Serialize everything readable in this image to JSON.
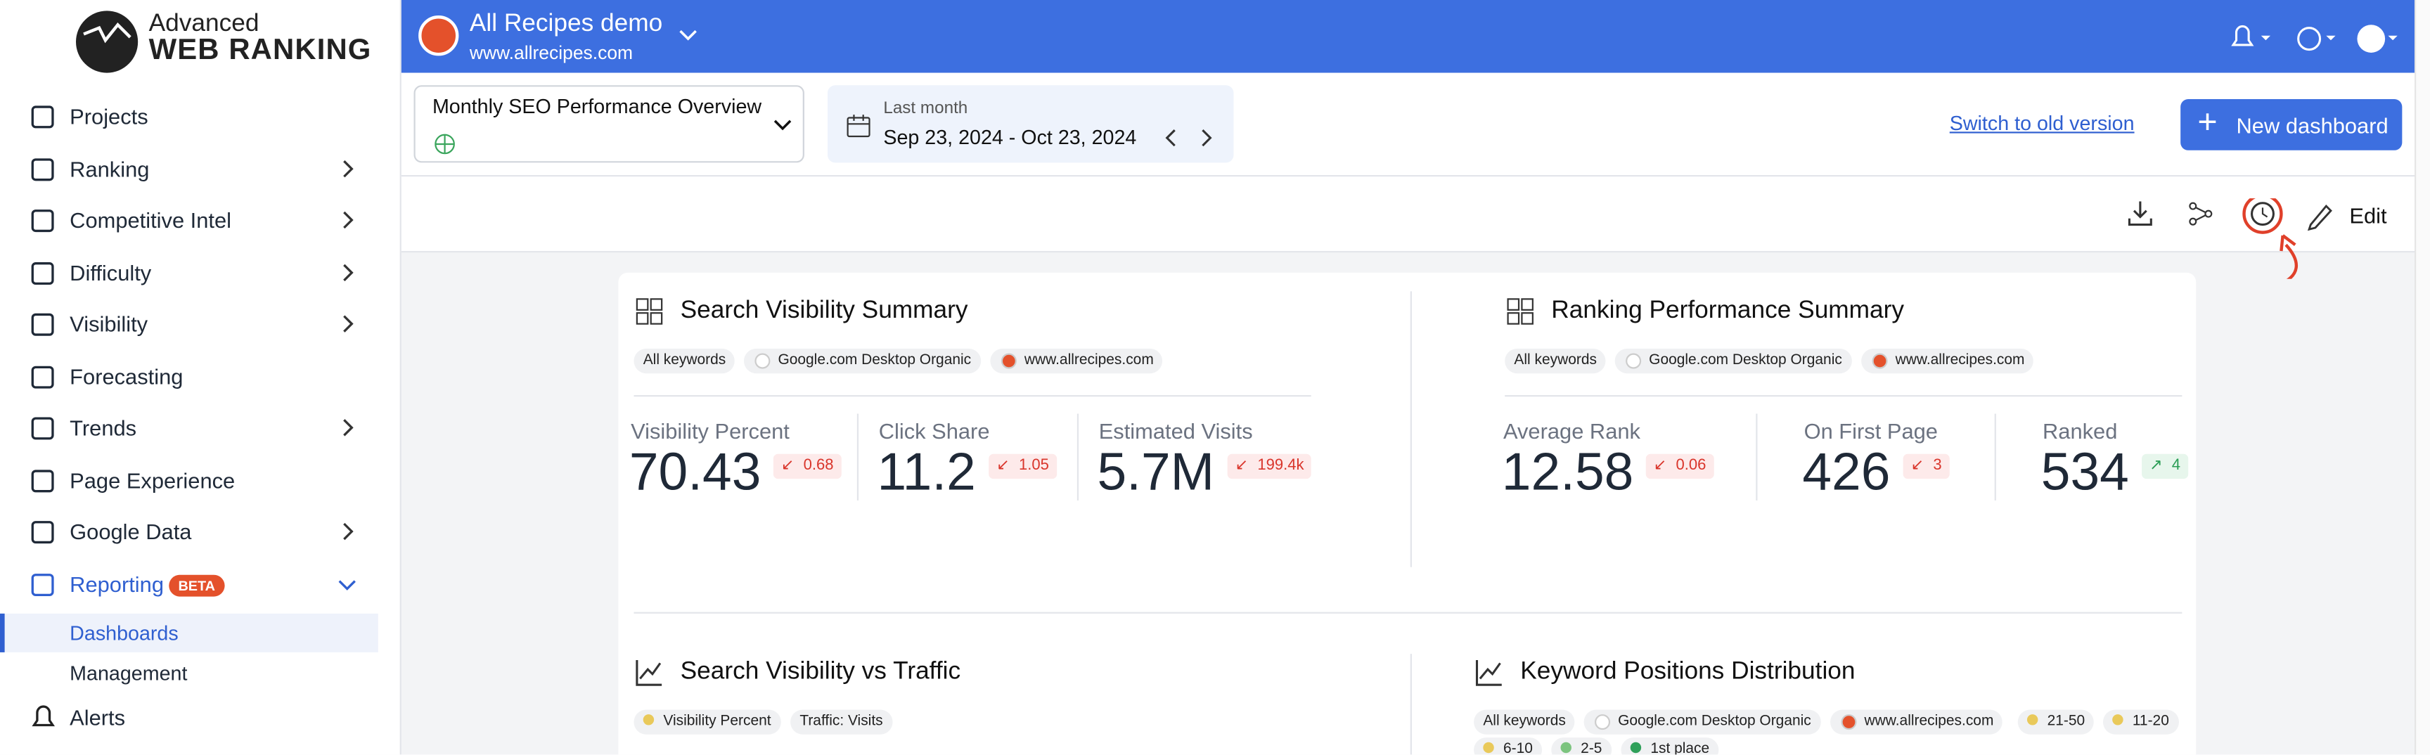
{
  "sidebar": {
    "logo": {
      "line1": "Advanced",
      "line2": "WEB RANKING"
    },
    "items": [
      "Projects",
      "Ranking",
      "Competitive Intel",
      "Difficulty",
      "Visibility",
      "Forecasting",
      "Trends",
      "Page Experience",
      "Google Data",
      "Reporting"
    ],
    "reporting_badge": "BETA",
    "subitems": [
      "Dashboards",
      "Management"
    ],
    "alerts": "Alerts"
  },
  "header": {
    "project": "All Recipes demo",
    "url": "www.allrecipes.com"
  },
  "toolbar": {
    "dashboard": "Monthly SEO Performance Overview",
    "date_label": "Last month",
    "date_range": "Sep 23, 2024 - Oct 23, 2024",
    "old_version": "Switch to old version",
    "new_dashboard": "New dashboard",
    "edit": "Edit"
  },
  "widgets": [
    {
      "title": "Search Visibility Summary",
      "tags": [
        "All keywords",
        "Google.com Desktop Organic",
        "www.allrecipes.com"
      ],
      "metrics": [
        {
          "label": "Visibility Percent",
          "value": 70.43,
          "change": 0.68,
          "direction": "down"
        },
        {
          "label": "Click Share",
          "value": 11.2,
          "change": 1.05,
          "direction": "down"
        },
        {
          "label": "Estimated Visits",
          "value": "5.7M",
          "change": "199.4k",
          "direction": "down"
        }
      ]
    },
    {
      "title": "Ranking Performance Summary",
      "tags": [
        "All keywords",
        "Google.com Desktop Organic",
        "www.allrecipes.com"
      ],
      "metrics": [
        {
          "label": "Average Rank",
          "value": 12.58,
          "change": 0.06,
          "direction": "down"
        },
        {
          "label": "On First Page",
          "value": 426,
          "change": 3,
          "direction": "down"
        },
        {
          "label": "Ranked",
          "value": 534,
          "change": 4,
          "direction": "up"
        }
      ]
    },
    {
      "title": "Search Visibility vs Traffic",
      "legend": [
        {
          "name": "Visibility Percent",
          "color": "#e9c95a"
        },
        {
          "name": "Traffic: Visits",
          "color": null
        }
      ]
    },
    {
      "title": "Keyword Positions Distribution",
      "tags": [
        "All keywords",
        "Google.com Desktop Organic",
        "www.allrecipes.com"
      ],
      "legend": [
        {
          "name": "21-50",
          "color": "#e9c95a"
        },
        {
          "name": "11-20",
          "color": "#e9c95a"
        },
        {
          "name": "6-10",
          "color": "#e9c95a"
        },
        {
          "name": "2-5",
          "color": "#7cc47f"
        },
        {
          "name": "1st place",
          "color": "#2fa05a"
        }
      ]
    }
  ]
}
